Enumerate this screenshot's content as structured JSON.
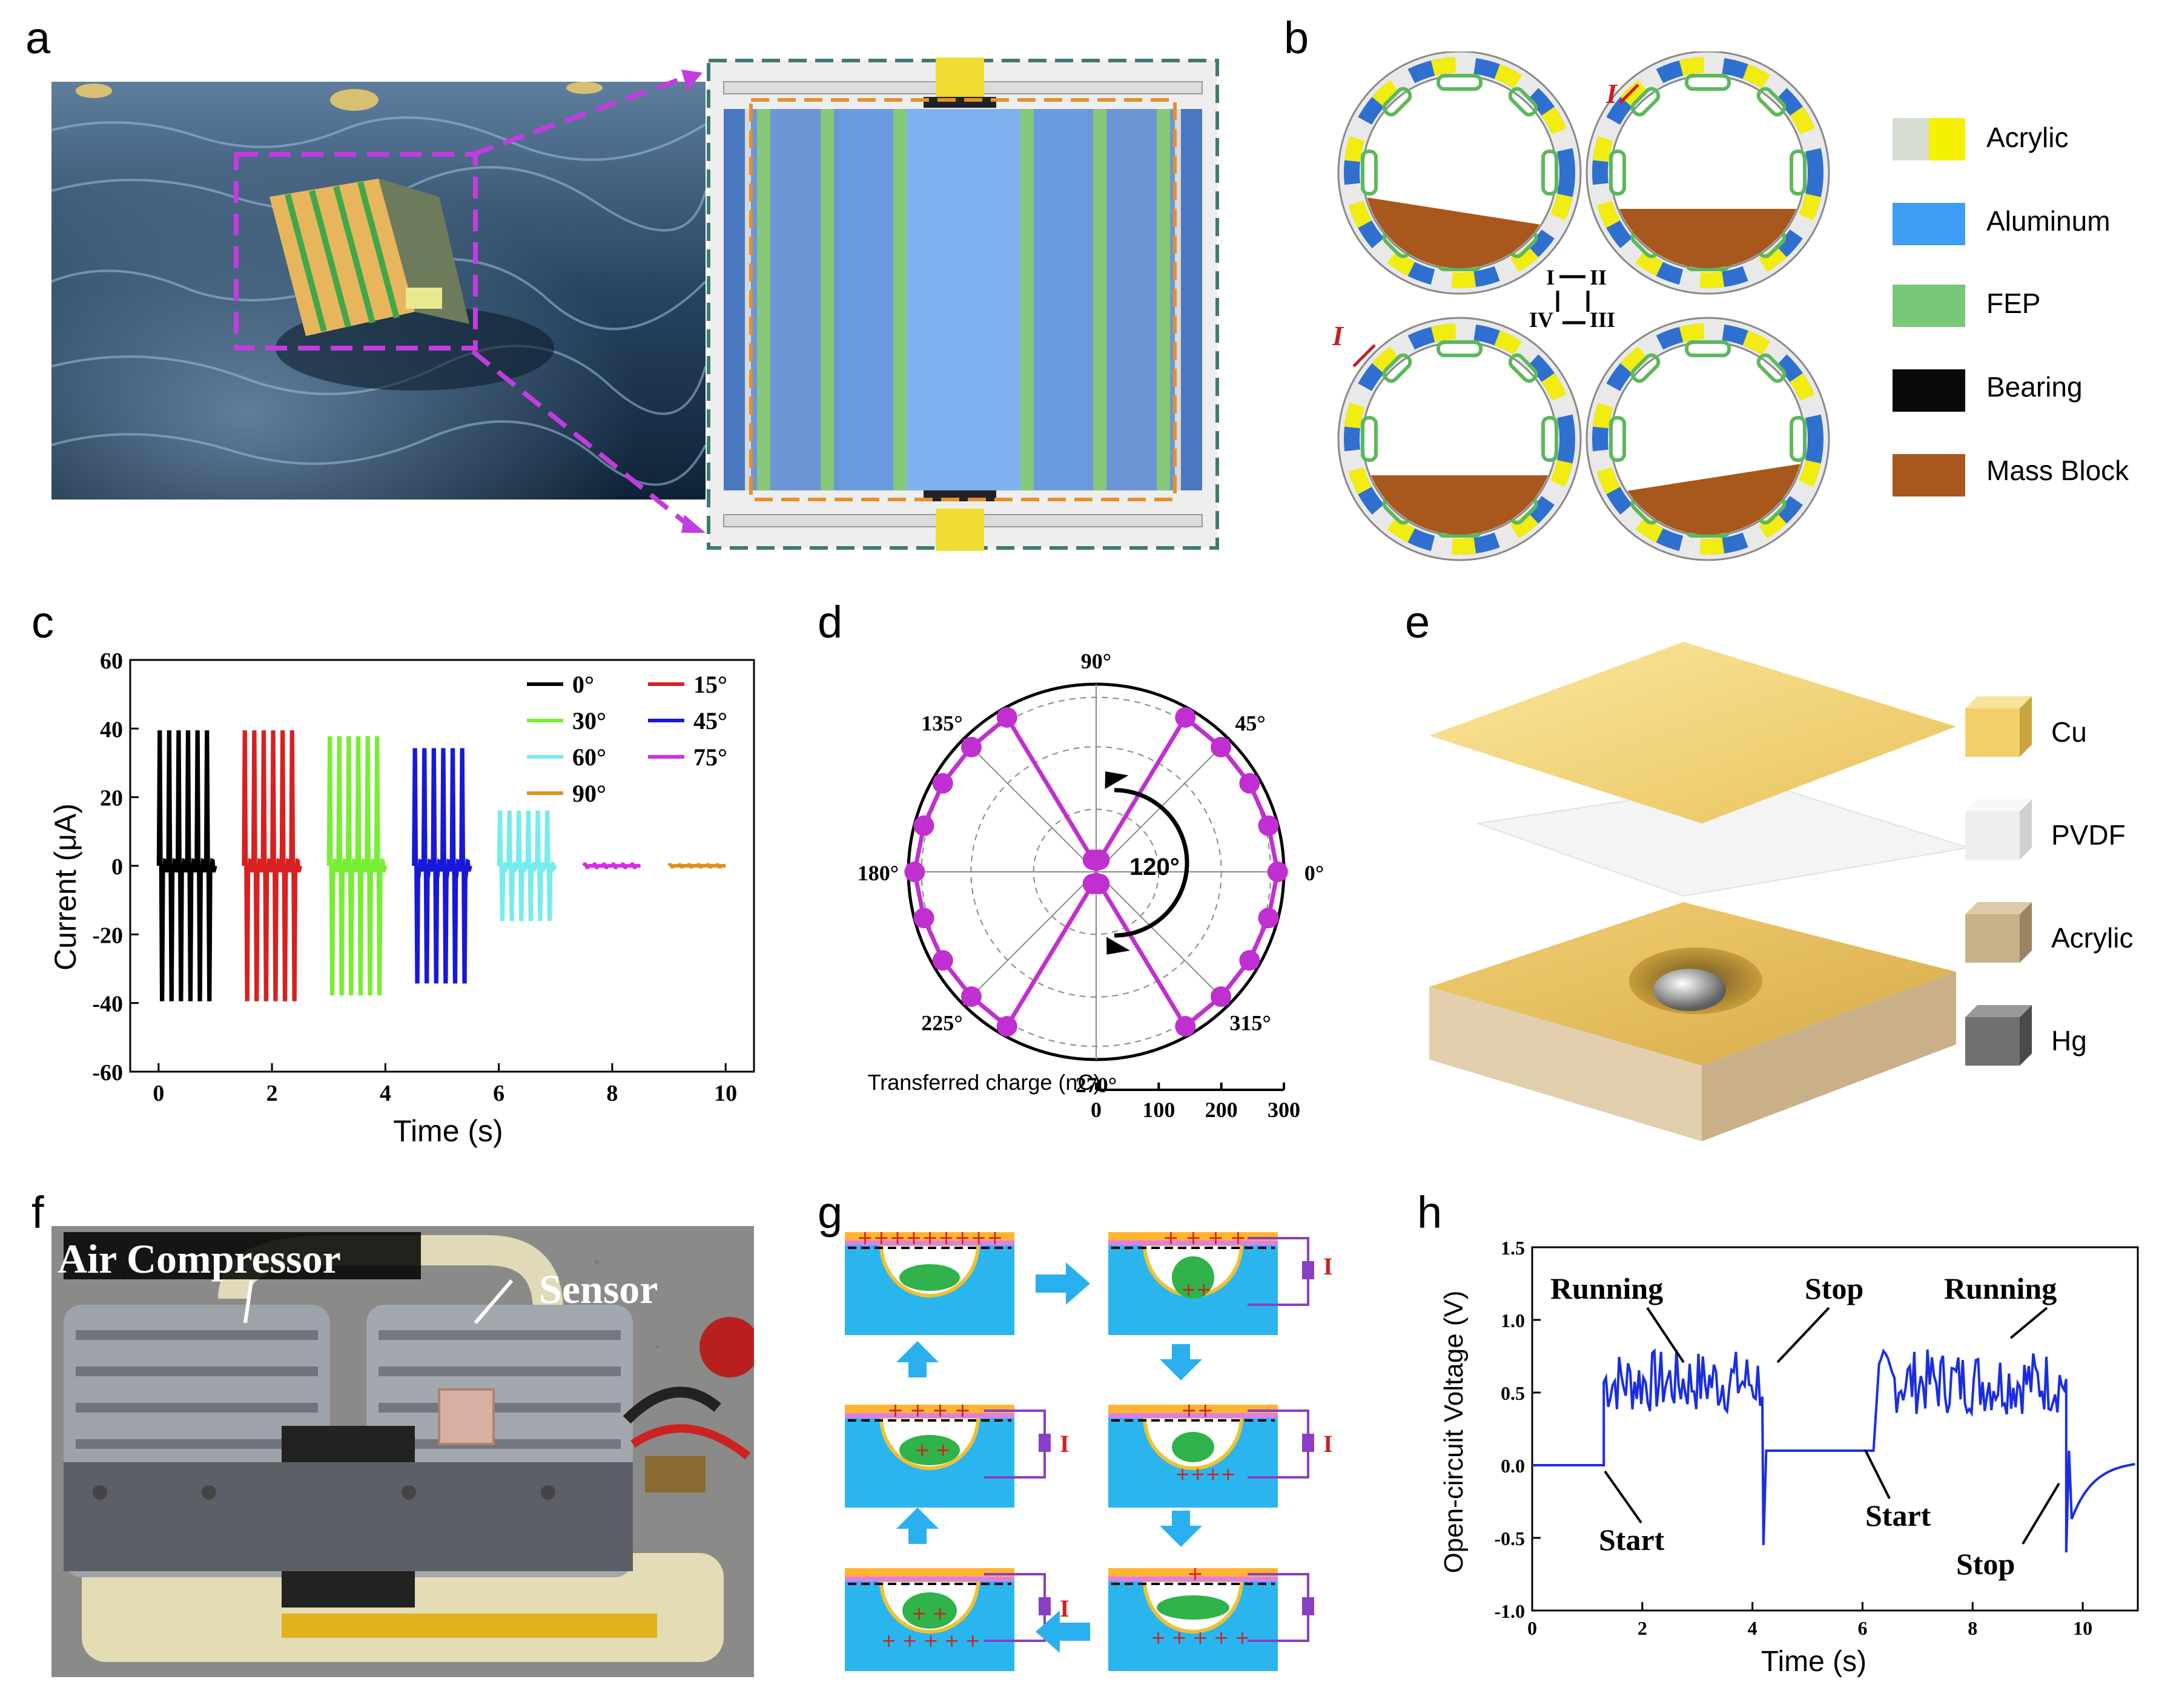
{
  "figure": {
    "panel_labels": [
      "a",
      "b",
      "c",
      "d",
      "e",
      "f",
      "g",
      "h"
    ],
    "b": {
      "legend": [
        {
          "label": "Acrylic",
          "color": "#f5f000",
          "color2": "#d8ddd3"
        },
        {
          "label": "Aluminum",
          "color": "#3e9ef5"
        },
        {
          "label": "FEP",
          "color": "#78c878"
        },
        {
          "label": "Bearing",
          "color": "#0a0a0a"
        },
        {
          "label": "Mass Block",
          "color": "#a8581c"
        }
      ],
      "cycle_labels": [
        "I",
        "II",
        "III",
        "IV"
      ],
      "current_label": "I"
    },
    "e": {
      "legend": [
        {
          "label": "Cu",
          "color": "#f2d068"
        },
        {
          "label": "PVDF",
          "color": "#eeeeee"
        },
        {
          "label": "Acrylic",
          "color": "#c8b08a"
        },
        {
          "label": "Hg",
          "color": "#707070"
        }
      ]
    },
    "f": {
      "labels": {
        "compressor": "Air Compressor",
        "sensor": "Sensor"
      }
    },
    "g": {
      "current_label": "I"
    }
  },
  "chart_data": [
    {
      "panel": "c",
      "type": "line",
      "xlabel": "Time (s)",
      "ylabel": "Current (μA)",
      "xlim": [
        -0.5,
        10.5
      ],
      "ylim": [
        -60,
        60
      ],
      "xticks": [
        0,
        2,
        4,
        6,
        8,
        10
      ],
      "yticks": [
        60,
        40,
        20,
        0,
        -20,
        -40,
        -60
      ],
      "series": [
        {
          "name": "0°",
          "color": "#000000",
          "t_start": 0.0,
          "t_end": 1.0,
          "amplitude": 45
        },
        {
          "name": "15°",
          "color": "#d82020",
          "t_start": 1.5,
          "t_end": 2.5,
          "amplitude": 45
        },
        {
          "name": "30°",
          "color": "#77ee33",
          "t_start": 3.0,
          "t_end": 4.0,
          "amplitude": 43
        },
        {
          "name": "45°",
          "color": "#1818d8",
          "t_start": 4.5,
          "t_end": 5.5,
          "amplitude": 39
        },
        {
          "name": "60°",
          "color": "#77ecec",
          "t_start": 6.0,
          "t_end": 7.0,
          "amplitude": 18
        },
        {
          "name": "75°",
          "color": "#d62ee0",
          "t_start": 7.5,
          "t_end": 8.5,
          "amplitude": 0.5
        },
        {
          "name": "90°",
          "color": "#e09020",
          "t_start": 9.0,
          "t_end": 10.0,
          "amplitude": 0.3
        }
      ]
    },
    {
      "panel": "d",
      "type": "scatter",
      "subtype": "polar",
      "radial_label": "Transferred charge (nC)",
      "radial_ticks": [
        0,
        100,
        200,
        300
      ],
      "rmax": 300,
      "angle_labels": [
        "90°",
        "45°",
        "0°",
        "315°",
        "270°",
        "225°",
        "180°",
        "135°"
      ],
      "annotation": "120°",
      "angles_deg": [
        0,
        15,
        30,
        45,
        60,
        75,
        90,
        105,
        120,
        135,
        150,
        165,
        180,
        195,
        210,
        225,
        240,
        255,
        270,
        285,
        300,
        315,
        330,
        345
      ],
      "charge_nC": [
        290,
        285,
        283,
        282,
        285,
        20,
        18,
        20,
        285,
        282,
        283,
        285,
        290,
        285,
        283,
        282,
        285,
        20,
        18,
        20,
        285,
        282,
        283,
        285
      ],
      "color": "#c030d0"
    },
    {
      "panel": "h",
      "type": "line",
      "xlabel": "Time (s)",
      "ylabel": "Open-circuit Voltage (V)",
      "xlim": [
        0,
        11
      ],
      "ylim": [
        -1.0,
        1.5
      ],
      "xticks": [
        0,
        2,
        4,
        6,
        8,
        10
      ],
      "yticks": [
        1.5,
        1.0,
        0.5,
        0.0,
        -0.5,
        -1.0
      ],
      "annotations": [
        "Running",
        "Stop",
        "Running",
        "Start",
        "Start",
        "Stop"
      ],
      "segments": [
        {
          "state": "idle",
          "t": [
            0,
            1.3
          ],
          "v": 0.0
        },
        {
          "state": "running",
          "t": [
            1.3,
            4.2
          ],
          "v_min": 0.35,
          "v_max": 0.8
        },
        {
          "state": "stop_spike",
          "t": 4.2,
          "v": -0.55
        },
        {
          "state": "idle",
          "t": [
            4.3,
            6.2
          ],
          "v": 0.1
        },
        {
          "state": "running",
          "t": [
            6.3,
            9.7
          ],
          "v_min": 0.35,
          "v_max": 0.8
        },
        {
          "state": "stop_spike",
          "t": 9.7,
          "v": -0.6
        },
        {
          "state": "recovery",
          "t": [
            9.8,
            11
          ],
          "v_end": 0.03
        }
      ],
      "color": "#1a2ee0"
    }
  ]
}
